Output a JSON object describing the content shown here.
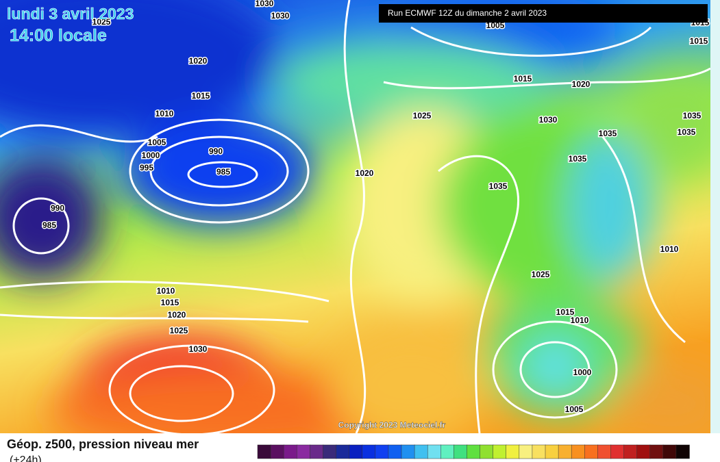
{
  "header": {
    "date": "lundi 3 avril 2023",
    "time": "14:00 locale",
    "run": "Run ECMWF 12Z du dimanche 2 avril 2023"
  },
  "copyright": "Copyright 2023 Meteociel.fr",
  "legend": {
    "title": "Géop. z500, pression niveau mer",
    "subtitle": "(+24h)",
    "colors": [
      "#3a0a3a",
      "#5a1060",
      "#7a1a8a",
      "#8a2aa0",
      "#6a2a8a",
      "#3a2a7a",
      "#1a2a9a",
      "#0a20c0",
      "#0a30e0",
      "#1040f0",
      "#1060f0",
      "#2090f0",
      "#40c0f0",
      "#70e0f0",
      "#60f0c0",
      "#40e080",
      "#60e040",
      "#90e030",
      "#c0f030",
      "#f0f040",
      "#f8f080",
      "#f8e060",
      "#f8d040",
      "#f8b030",
      "#f89020",
      "#f87020",
      "#f05030",
      "#e03030",
      "#c02020",
      "#a01010",
      "#701010",
      "#400808",
      "#100404"
    ]
  },
  "isobars": [
    "1030",
    "1030",
    "1025",
    "1020",
    "1015",
    "1010",
    "1005",
    "1000",
    "995",
    "990",
    "985",
    "990",
    "985",
    "1005",
    "1015",
    "1015",
    "1015",
    "1020",
    "1025",
    "1030",
    "1035",
    "1035",
    "1035",
    "1020",
    "1035",
    "1035",
    "1010",
    "1025",
    "1010",
    "1015",
    "1020",
    "1025",
    "1030",
    "1015",
    "1010",
    "1000",
    "1005"
  ]
}
